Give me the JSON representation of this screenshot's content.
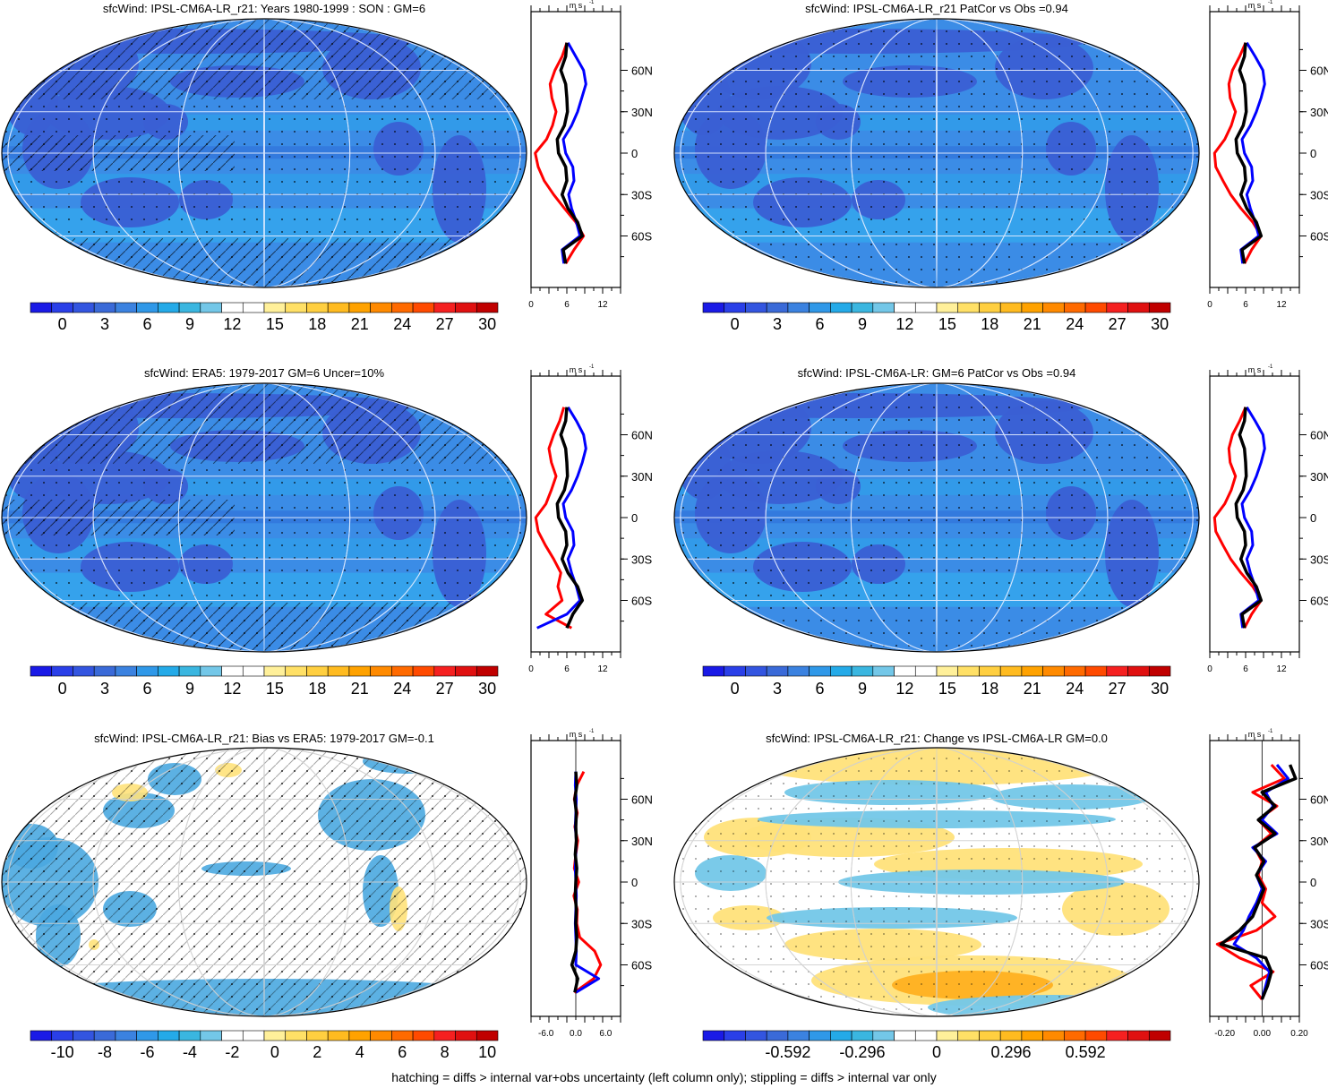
{
  "footnote": "hatching = diffs > internal var+obs uncertainty (left column only); stippling = diffs > internal var only",
  "profile_unit": "m s",
  "profile_unit_exp": "-1",
  "lat_ticks": [
    "60N",
    "30N",
    "0",
    "30S",
    "60S"
  ],
  "colors": {
    "model": "#000000",
    "obs_red": "#ff0000",
    "obs_blue": "#0000ff",
    "ocean_mean": "#3b8ce6",
    "land_mean": "#3a5fd4",
    "hatch_bias": "#4aa8e0",
    "graticule": "#d0d0d0"
  },
  "chart_data": [
    {
      "type": "heatmap",
      "title": "sfcWind: IPSL-CM6A-LR_r21: Years 1980-1999 : SON : GM=6",
      "colorbar": {
        "labels": [
          "0",
          "3",
          "6",
          "9",
          "12",
          "15",
          "18",
          "21",
          "24",
          "27",
          "30"
        ],
        "colors": [
          "#1a1ae6",
          "#2a3fe8",
          "#3355e0",
          "#3a6ad8",
          "#3b82e0",
          "#2f98e8",
          "#24aae8",
          "#3ab6e0",
          "#73c7e8",
          "#ffffff",
          "#ffffff",
          "#fff09a",
          "#ffe066",
          "#ffcf40",
          "#ffbb20",
          "#ffa200",
          "#ff8a00",
          "#ff6a00",
          "#ff4a00",
          "#f52020",
          "#e01010",
          "#c00000"
        ]
      },
      "profile": {
        "xticks": [
          "0",
          "6",
          "12"
        ],
        "xrange": [
          0,
          15
        ],
        "lat": [
          80,
          70,
          60,
          50,
          40,
          30,
          20,
          10,
          0,
          -10,
          -20,
          -30,
          -40,
          -50,
          -60,
          -70,
          -80
        ],
        "series": [
          {
            "color": "red",
            "values": [
              6.0,
              5.2,
              4.0,
              3.2,
              3.5,
              4.2,
              3.6,
              2.6,
              0.7,
              1.2,
              2.2,
              3.8,
              5.6,
              7.5,
              8.8,
              7.2,
              5.8
            ]
          },
          {
            "color": "blue",
            "values": [
              6.2,
              7.5,
              8.8,
              9.2,
              8.5,
              7.8,
              6.8,
              5.4,
              5.8,
              7.0,
              7.2,
              6.3,
              6.8,
              7.6,
              8.2,
              5.2,
              5.5
            ]
          },
          {
            "color": "black",
            "values": [
              6.0,
              5.8,
              5.0,
              5.8,
              6.0,
              6.1,
              5.6,
              4.4,
              4.6,
              5.8,
              6.0,
              5.2,
              6.2,
              7.8,
              8.6,
              5.4,
              5.8
            ]
          }
        ]
      }
    },
    {
      "type": "heatmap",
      "title": "sfcWind: IPSL-CM6A-LR_r21 PatCor vs Obs =0.94",
      "colorbar": {
        "labels": [
          "0",
          "3",
          "6",
          "9",
          "12",
          "15",
          "18",
          "21",
          "24",
          "27",
          "30"
        ],
        "colors": [
          "#1a1ae6",
          "#2a3fe8",
          "#3355e0",
          "#3a6ad8",
          "#3b82e0",
          "#2f98e8",
          "#24aae8",
          "#3ab6e0",
          "#73c7e8",
          "#ffffff",
          "#ffffff",
          "#fff09a",
          "#ffe066",
          "#ffcf40",
          "#ffbb20",
          "#ffa200",
          "#ff8a00",
          "#ff6a00",
          "#ff4a00",
          "#f52020",
          "#e01010",
          "#c00000"
        ]
      },
      "profile": {
        "xticks": [
          "0",
          "6",
          "12"
        ],
        "xrange": [
          0,
          15
        ],
        "lat": [
          80,
          70,
          60,
          50,
          40,
          30,
          20,
          10,
          0,
          -10,
          -20,
          -30,
          -40,
          -50,
          -60,
          -70,
          -80
        ],
        "series": [
          {
            "color": "red",
            "values": [
              6.0,
              5.0,
              3.8,
              3.2,
              3.4,
              4.3,
              3.6,
              2.5,
              0.8,
              1.0,
              2.2,
              3.5,
              5.2,
              7.2,
              8.6,
              7.0,
              5.8
            ]
          },
          {
            "color": "blue",
            "values": [
              6.2,
              7.6,
              8.9,
              9.2,
              8.6,
              7.8,
              6.8,
              5.4,
              5.8,
              7.0,
              7.2,
              6.2,
              6.8,
              7.6,
              8.2,
              5.2,
              5.5
            ]
          },
          {
            "color": "black",
            "values": [
              6.0,
              5.8,
              5.0,
              5.8,
              6.0,
              6.1,
              5.6,
              4.4,
              4.6,
              5.8,
              6.0,
              5.2,
              6.2,
              7.8,
              8.6,
              5.4,
              5.8
            ]
          }
        ]
      }
    },
    {
      "type": "heatmap",
      "title": "sfcWind: ERA5: 1979-2017 GM=6 Uncer=10%",
      "colorbar": {
        "labels": [
          "0",
          "3",
          "6",
          "9",
          "12",
          "15",
          "18",
          "21",
          "24",
          "27",
          "30"
        ],
        "colors": [
          "#1a1ae6",
          "#2a3fe8",
          "#3355e0",
          "#3a6ad8",
          "#3b82e0",
          "#2f98e8",
          "#24aae8",
          "#3ab6e0",
          "#73c7e8",
          "#ffffff",
          "#ffffff",
          "#fff09a",
          "#ffe066",
          "#ffcf40",
          "#ffbb20",
          "#ffa200",
          "#ff8a00",
          "#ff6a00",
          "#ff4a00",
          "#f52020",
          "#e01010",
          "#c00000"
        ]
      },
      "profile": {
        "xticks": [
          "0",
          "6",
          "12"
        ],
        "xrange": [
          0,
          15
        ],
        "lat": [
          80,
          70,
          60,
          50,
          40,
          30,
          20,
          10,
          0,
          -10,
          -20,
          -30,
          -40,
          -50,
          -60,
          -70,
          -80
        ],
        "series": [
          {
            "color": "red",
            "values": [
              5.5,
              4.8,
              3.8,
              3.0,
              3.4,
              4.2,
              3.4,
              2.5,
              0.8,
              1.2,
              2.4,
              3.8,
              5.0,
              4.5,
              5.2,
              2.5,
              6.8
            ]
          },
          {
            "color": "blue",
            "values": [
              6.2,
              7.6,
              8.8,
              9.2,
              8.6,
              7.8,
              6.8,
              5.4,
              5.8,
              7.0,
              7.2,
              6.2,
              6.8,
              7.6,
              8.2,
              6.0,
              1.0
            ]
          },
          {
            "color": "black",
            "values": [
              6.0,
              5.8,
              5.0,
              5.8,
              6.0,
              6.1,
              5.6,
              4.4,
              4.6,
              5.8,
              6.0,
              5.2,
              6.2,
              7.8,
              8.6,
              7.0,
              6.0
            ]
          }
        ]
      }
    },
    {
      "type": "heatmap",
      "title": "sfcWind: IPSL-CM6A-LR: GM=6 PatCor vs Obs =0.94",
      "colorbar": {
        "labels": [
          "0",
          "3",
          "6",
          "9",
          "12",
          "15",
          "18",
          "21",
          "24",
          "27",
          "30"
        ],
        "colors": [
          "#1a1ae6",
          "#2a3fe8",
          "#3355e0",
          "#3a6ad8",
          "#3b82e0",
          "#2f98e8",
          "#24aae8",
          "#3ab6e0",
          "#73c7e8",
          "#ffffff",
          "#ffffff",
          "#fff09a",
          "#ffe066",
          "#ffcf40",
          "#ffbb20",
          "#ffa200",
          "#ff8a00",
          "#ff6a00",
          "#ff4a00",
          "#f52020",
          "#e01010",
          "#c00000"
        ]
      },
      "profile": {
        "xticks": [
          "0",
          "6",
          "12"
        ],
        "xrange": [
          0,
          15
        ],
        "lat": [
          80,
          70,
          60,
          50,
          40,
          30,
          20,
          10,
          0,
          -10,
          -20,
          -30,
          -40,
          -50,
          -60,
          -70,
          -80
        ],
        "series": [
          {
            "color": "red",
            "values": [
              6.0,
              5.0,
              3.8,
              3.2,
              3.4,
              4.3,
              3.6,
              2.5,
              0.8,
              1.0,
              2.2,
              3.5,
              5.2,
              7.2,
              8.6,
              7.0,
              5.8
            ]
          },
          {
            "color": "blue",
            "values": [
              6.2,
              7.6,
              8.9,
              9.2,
              8.6,
              7.8,
              6.8,
              5.4,
              5.8,
              7.0,
              7.2,
              6.2,
              6.8,
              7.6,
              8.2,
              5.2,
              5.5
            ]
          },
          {
            "color": "black",
            "values": [
              6.0,
              5.8,
              5.0,
              5.8,
              6.0,
              6.1,
              5.6,
              4.4,
              4.6,
              5.8,
              6.0,
              5.2,
              6.2,
              7.8,
              8.6,
              5.4,
              5.8
            ]
          }
        ]
      }
    },
    {
      "type": "heatmap",
      "title": "sfcWind: IPSL-CM6A-LR_r21: Bias vs ERA5: 1979-2017  GM=-0.1",
      "colorbar": {
        "labels": [
          "-10",
          "-8",
          "-6",
          "-4",
          "-2",
          "0",
          "2",
          "4",
          "6",
          "8",
          "10"
        ],
        "colors": [
          "#1a1ae6",
          "#2a3fe8",
          "#3355e0",
          "#3a6ad8",
          "#3b82e0",
          "#2f98e8",
          "#24aae8",
          "#3ab6e0",
          "#73c7e8",
          "#ffffff",
          "#ffffff",
          "#fff09a",
          "#ffe066",
          "#ffcf40",
          "#ffbb20",
          "#ffa200",
          "#ff8a00",
          "#ff6a00",
          "#ff4a00",
          "#f52020",
          "#e01010",
          "#c00000"
        ]
      },
      "profile": {
        "xticks": [
          "-6.0",
          "0.0",
          "6.0"
        ],
        "xrange": [
          -9,
          9
        ],
        "lat": [
          80,
          70,
          60,
          50,
          40,
          30,
          20,
          10,
          0,
          -10,
          -20,
          -30,
          -40,
          -50,
          -60,
          -70,
          -80
        ],
        "series": [
          {
            "color": "red",
            "values": [
              1.6,
              0.2,
              -0.3,
              0.3,
              -0.2,
              0.4,
              0.0,
              -0.3,
              0.6,
              -0.4,
              0.3,
              0.2,
              0.8,
              3.8,
              5.0,
              3.6,
              -0.3
            ]
          },
          {
            "color": "blue",
            "values": [
              0.0,
              -0.1,
              0.1,
              0.0,
              -0.1,
              0.1,
              0.0,
              -0.1,
              0.0,
              0.1,
              0.0,
              -0.1,
              0.0,
              0.1,
              0.0,
              4.6,
              0.0
            ]
          },
          {
            "color": "black",
            "values": [
              0.0,
              0.2,
              -0.2,
              0.1,
              0.0,
              0.1,
              -0.1,
              0.2,
              0.0,
              -0.1,
              0.1,
              0.0,
              0.2,
              0.0,
              -0.8,
              0.4,
              -0.2
            ]
          }
        ]
      }
    },
    {
      "type": "heatmap",
      "title": "sfcWind: IPSL-CM6A-LR_r21: Change vs IPSL-CM6A-LR GM=0.0",
      "colorbar": {
        "labels": [
          "-0.592",
          "-0.296",
          "0",
          "0.296",
          "0.592"
        ],
        "colors": [
          "#1a1ae6",
          "#2a3fe8",
          "#3355e0",
          "#3a6ad8",
          "#3b82e0",
          "#2f98e8",
          "#24aae8",
          "#3ab6e0",
          "#73c7e8",
          "#ffffff",
          "#ffffff",
          "#fff09a",
          "#ffe066",
          "#ffcf40",
          "#ffbb20",
          "#ffa200",
          "#ff8a00",
          "#ff6a00",
          "#ff4a00",
          "#f52020",
          "#e01010",
          "#c00000"
        ]
      },
      "profile": {
        "xticks": [
          "-0.20",
          "0.00",
          "0.20"
        ],
        "xrange": [
          -0.28,
          0.2
        ],
        "lat": [
          85,
          75,
          65,
          55,
          45,
          35,
          25,
          15,
          5,
          -5,
          -15,
          -25,
          -35,
          -45,
          -55,
          -65,
          -75,
          -85
        ],
        "series": [
          {
            "color": "red",
            "values": [
              0.05,
              0.12,
              -0.05,
              0.08,
              -0.02,
              0.05,
              -0.04,
              0.0,
              -0.02,
              0.02,
              0.0,
              0.07,
              -0.03,
              -0.24,
              -0.12,
              0.06,
              -0.06,
              0.0
            ]
          },
          {
            "color": "blue",
            "values": [
              0.08,
              0.14,
              0.02,
              0.06,
              0.0,
              0.08,
              -0.05,
              0.02,
              -0.03,
              0.0,
              -0.03,
              -0.07,
              -0.1,
              -0.15,
              -0.03,
              0.04,
              0.02,
              0.0
            ]
          },
          {
            "color": "black",
            "values": [
              0.15,
              0.18,
              0.0,
              0.07,
              -0.02,
              0.07,
              -0.04,
              0.01,
              -0.03,
              0.01,
              -0.02,
              -0.05,
              -0.12,
              -0.22,
              0.02,
              0.05,
              0.03,
              0.0
            ]
          }
        ]
      }
    }
  ]
}
